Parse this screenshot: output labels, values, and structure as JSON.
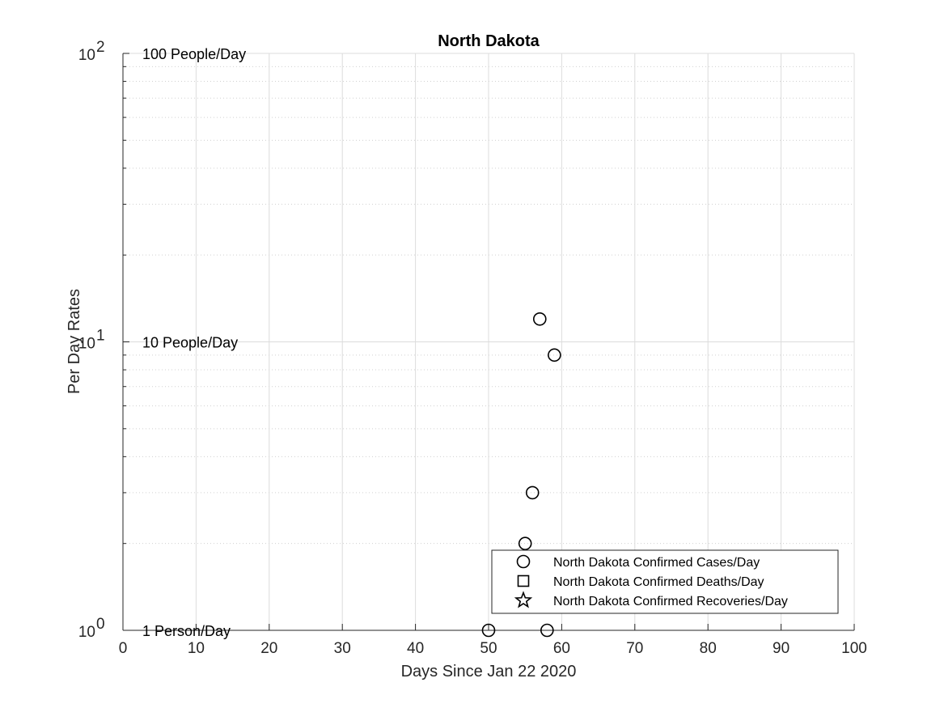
{
  "chart_data": {
    "type": "scatter",
    "title": "North Dakota",
    "xlabel": "Days Since Jan 22 2020",
    "ylabel": "Per Day Rates",
    "xlim": [
      0,
      100
    ],
    "ylim": [
      1,
      100
    ],
    "yscale": "log",
    "grid": true,
    "minor_grid": true,
    "x_ticks": [
      "0",
      "10",
      "20",
      "30",
      "40",
      "50",
      "60",
      "70",
      "80",
      "90",
      "100"
    ],
    "x_tick_values": [
      0,
      10,
      20,
      30,
      40,
      50,
      60,
      70,
      80,
      90,
      100
    ],
    "y_ticks": [
      {
        "base": "10",
        "exp": "0",
        "value": 1
      },
      {
        "base": "10",
        "exp": "1",
        "value": 10
      },
      {
        "base": "10",
        "exp": "2",
        "value": 100
      }
    ],
    "annotations": [
      {
        "text": "100 People/Day",
        "y": 100
      },
      {
        "text": "10 People/Day",
        "y": 10
      },
      {
        "text": "1 Person/Day",
        "y": 1
      }
    ],
    "legend_position": "bottom-right",
    "series": [
      {
        "name": "North Dakota Confirmed Cases/Day",
        "marker": "circle",
        "points": [
          {
            "x": 50,
            "y": 1
          },
          {
            "x": 55,
            "y": 2
          },
          {
            "x": 56,
            "y": 3
          },
          {
            "x": 57,
            "y": 12
          },
          {
            "x": 58,
            "y": 1
          },
          {
            "x": 59,
            "y": 9
          }
        ]
      },
      {
        "name": "North Dakota Confirmed Deaths/Day",
        "marker": "square",
        "points": []
      },
      {
        "name": "North Dakota Confirmed Recoveries/Day",
        "marker": "star",
        "points": []
      }
    ]
  }
}
